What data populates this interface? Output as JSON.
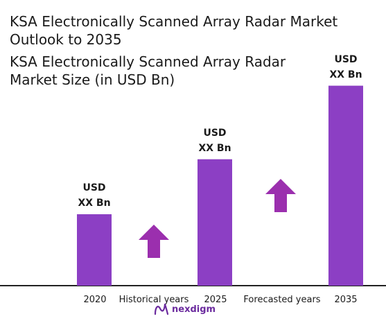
{
  "header": {
    "line1": "KSA Electronically Scanned Array Radar Market",
    "line2": "Outlook to 2035",
    "line3": "KSA Electronically Scanned Array Radar",
    "line4": "Market Size (in USD Bn)"
  },
  "chart_data": {
    "type": "bar",
    "categories": [
      "2020",
      "2025",
      "2035"
    ],
    "values": [
      1.0,
      1.77,
      2.8
    ],
    "value_labels": [
      [
        "USD",
        "XX Bn"
      ],
      [
        "USD",
        "XX Bn"
      ],
      [
        "USD",
        "XX Bn"
      ]
    ],
    "period_labels": [
      "Historical years",
      "Forecasted years"
    ],
    "grid": false,
    "legend": "none",
    "colors": {
      "bar": "#8c3fc4",
      "arrow": "#9b2fae",
      "axis": "#222222"
    }
  },
  "footer": {
    "logo_text": "nexdigm"
  }
}
